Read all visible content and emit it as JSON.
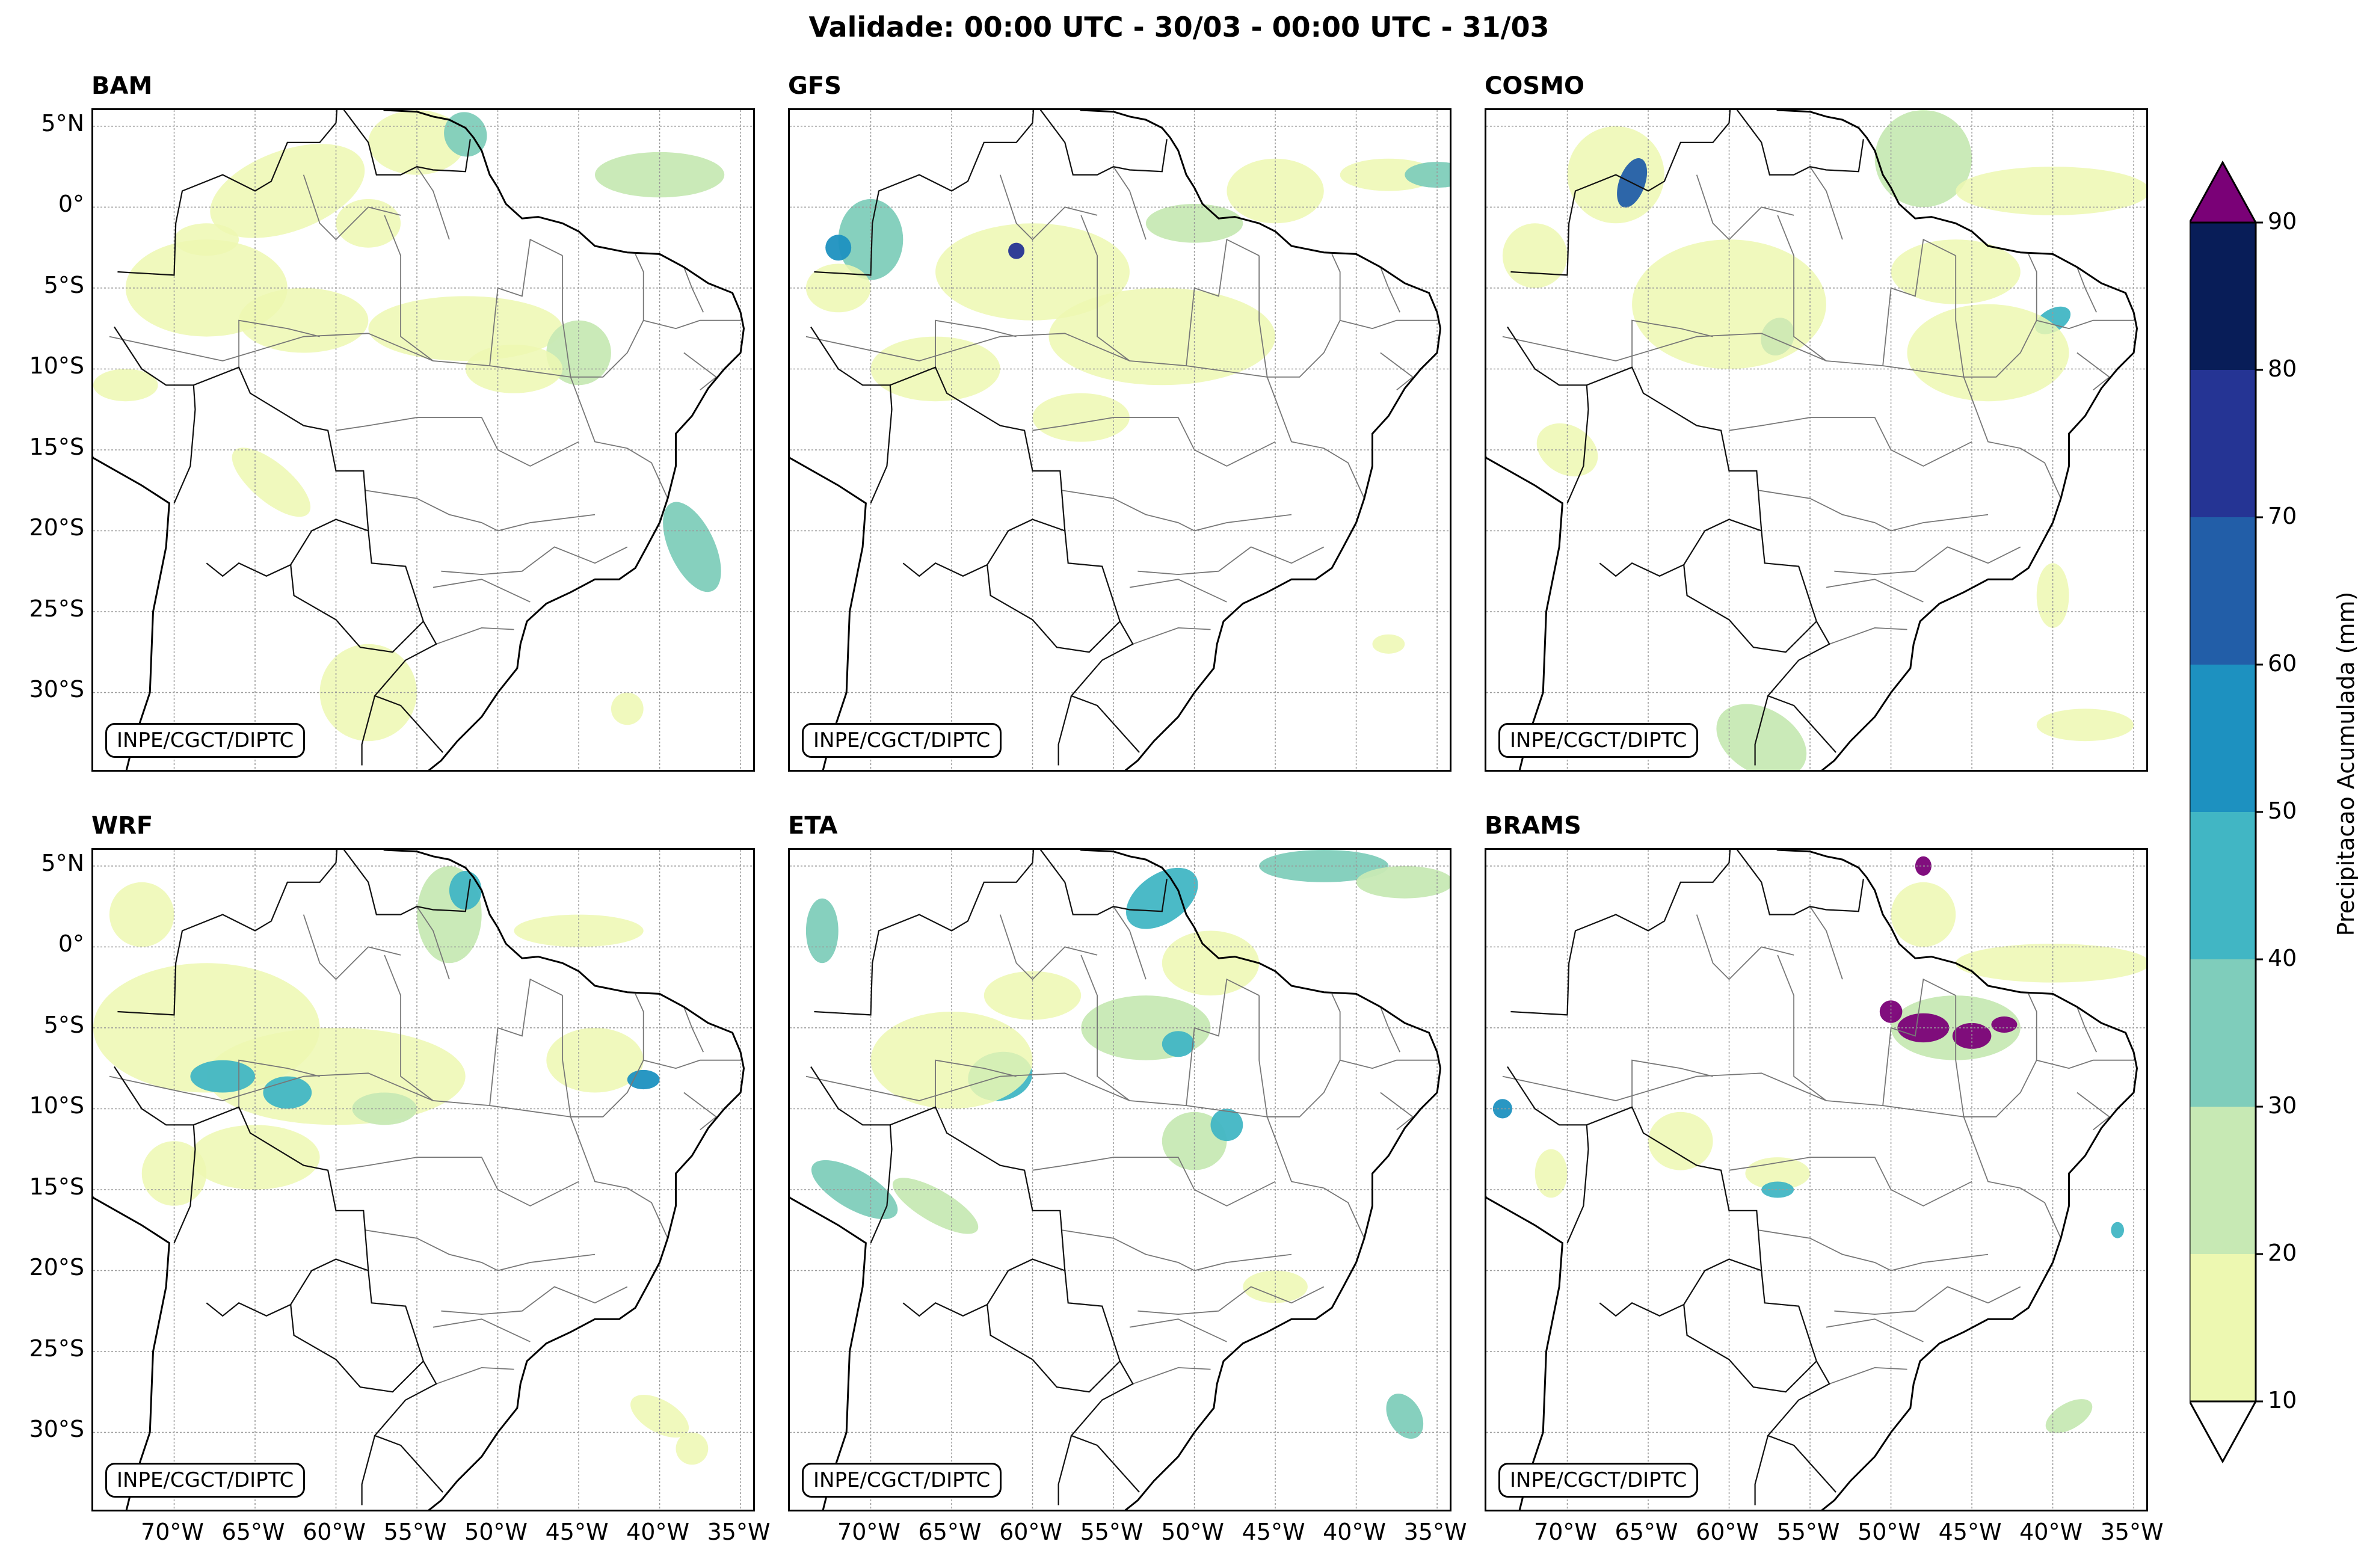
{
  "title": "Validade: 00:00 UTC - 30/03 - 00:00 UTC - 31/03",
  "credit": "INPE/CGCT/DIPTC",
  "panels": [
    {
      "name": "BAM"
    },
    {
      "name": "GFS"
    },
    {
      "name": "COSMO"
    },
    {
      "name": "WRF"
    },
    {
      "name": "ETA"
    },
    {
      "name": "BRAMS"
    }
  ],
  "lat_labels": [
    "5°N",
    "0°",
    "5°S",
    "10°S",
    "15°S",
    "20°S",
    "25°S",
    "30°S"
  ],
  "lon_labels": [
    "70°W",
    "65°W",
    "60°W",
    "55°W",
    "50°W",
    "45°W",
    "40°W",
    "35°W"
  ],
  "map_extent": {
    "lon_min": -75,
    "lon_max": -34,
    "lat_min": -35,
    "lat_max": 6
  },
  "colorbar": {
    "label": "Precipitacao Acumulada (mm)",
    "ticks": [
      "10",
      "20",
      "30",
      "40",
      "50",
      "60",
      "70",
      "80",
      "90"
    ],
    "colors": [
      "#edf8b1",
      "#c7e9b4",
      "#7fcdbb",
      "#41b6c4",
      "#1d91c0",
      "#225ea8",
      "#253494",
      "#081d58"
    ],
    "over_color": "#7a0177",
    "under_color": "#ffffff"
  }
}
